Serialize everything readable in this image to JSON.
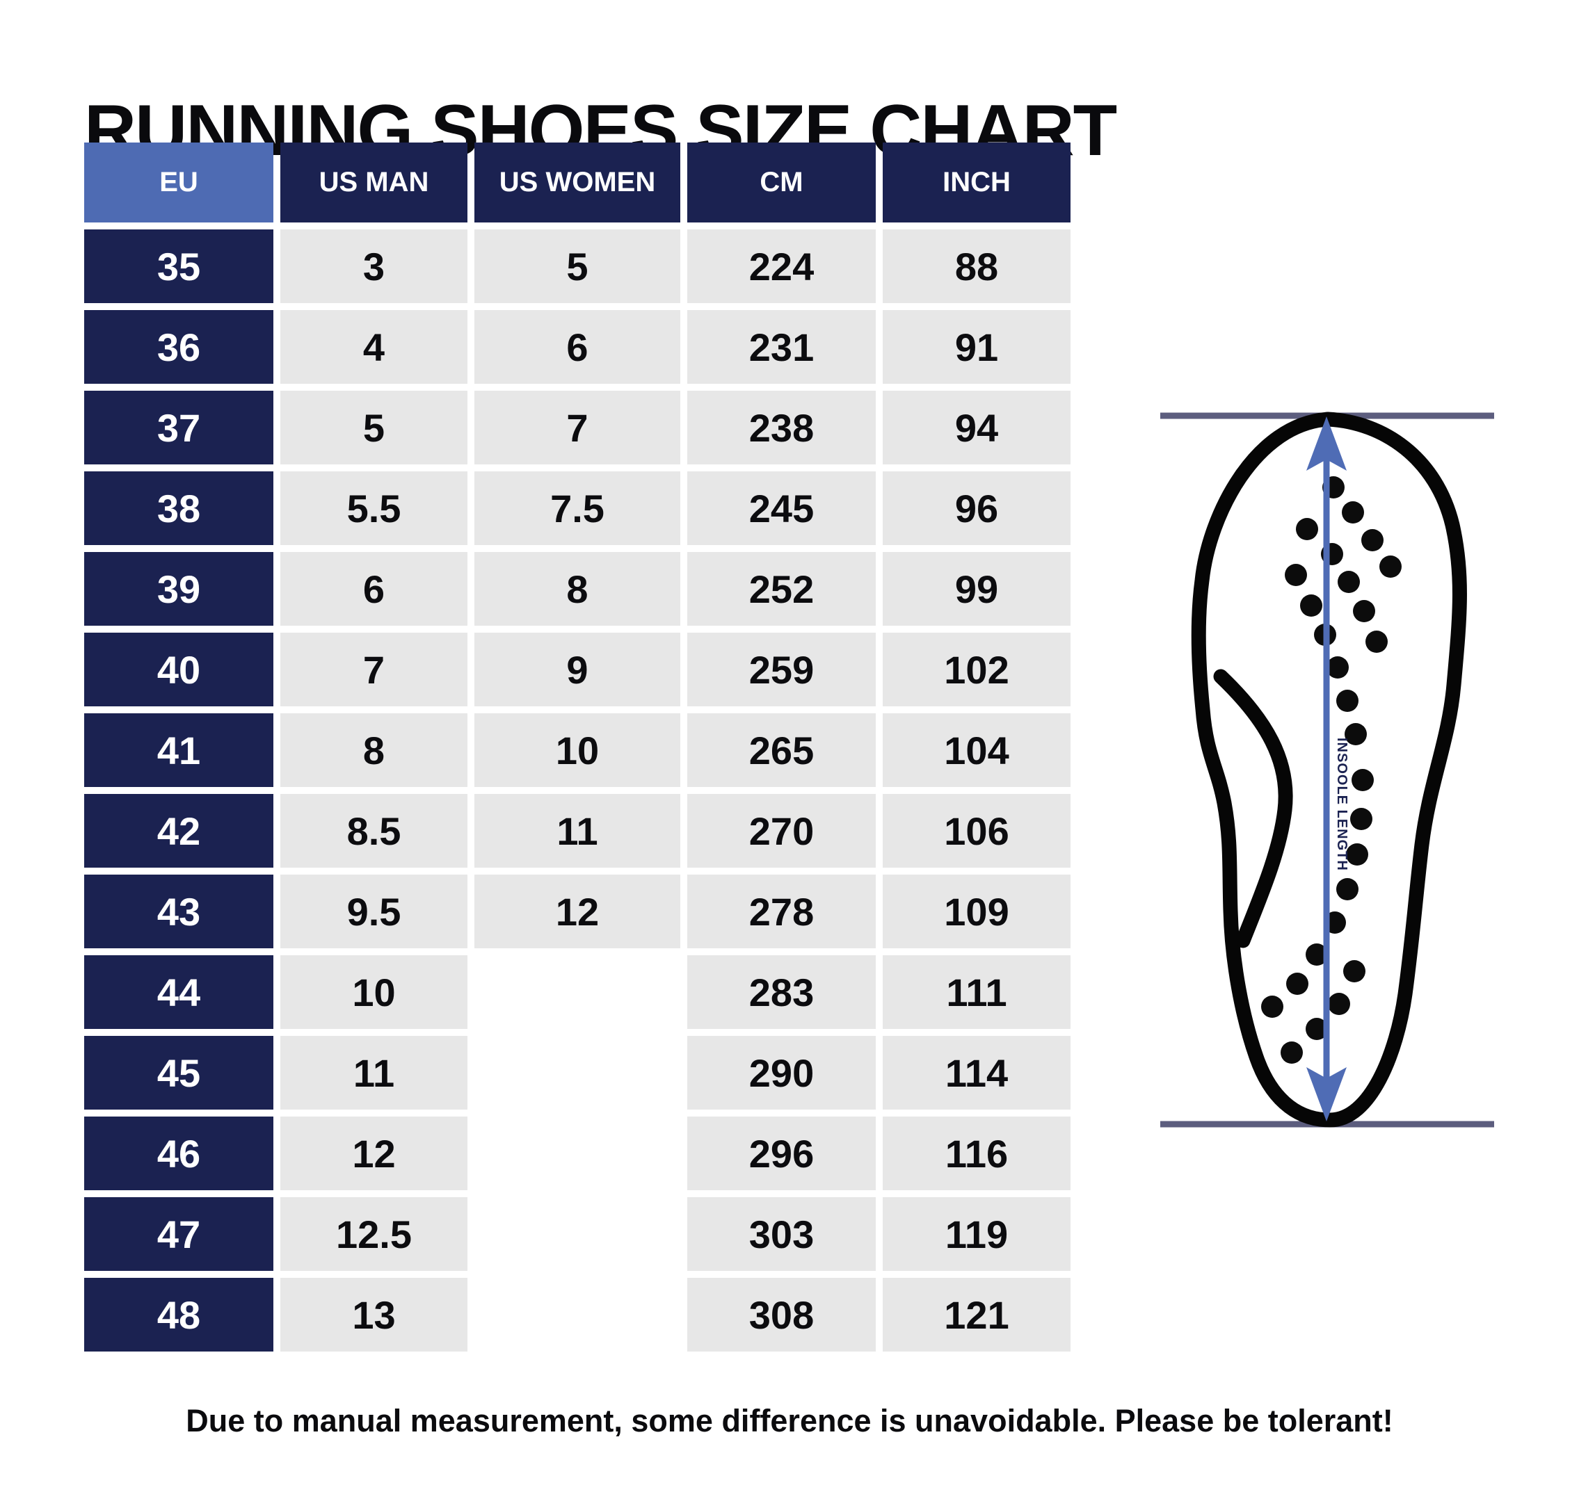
{
  "title": "RUNNING SHOES SIZE CHART",
  "footer": "Due to manual measurement, some difference is unavoidable. Please be tolerant!",
  "colors": {
    "navy": "#1b2251",
    "header_blue": "#4e6bb3",
    "cell_gray": "#e7e7e7",
    "arrow_blue": "#4f6cb5",
    "rule_line": "#5c5d7e",
    "text_black": "#0a0a0d"
  },
  "table": {
    "columns": [
      "EU",
      "US MAN",
      "US WOMEN",
      "CM",
      "INCH"
    ],
    "rows": [
      {
        "eu": "35",
        "us_man": "3",
        "us_women": "5",
        "cm": "224",
        "inch": "88"
      },
      {
        "eu": "36",
        "us_man": "4",
        "us_women": "6",
        "cm": "231",
        "inch": "91"
      },
      {
        "eu": "37",
        "us_man": "5",
        "us_women": "7",
        "cm": "238",
        "inch": "94"
      },
      {
        "eu": "38",
        "us_man": "5.5",
        "us_women": "7.5",
        "cm": "245",
        "inch": "96"
      },
      {
        "eu": "39",
        "us_man": "6",
        "us_women": "8",
        "cm": "252",
        "inch": "99"
      },
      {
        "eu": "40",
        "us_man": "7",
        "us_women": "9",
        "cm": "259",
        "inch": "102"
      },
      {
        "eu": "41",
        "us_man": "8",
        "us_women": "10",
        "cm": "265",
        "inch": "104"
      },
      {
        "eu": "42",
        "us_man": "8.5",
        "us_women": "11",
        "cm": "270",
        "inch": "106"
      },
      {
        "eu": "43",
        "us_man": "9.5",
        "us_women": "12",
        "cm": "278",
        "inch": "109"
      },
      {
        "eu": "44",
        "us_man": "10",
        "us_women": "",
        "cm": "283",
        "inch": "111"
      },
      {
        "eu": "45",
        "us_man": "11",
        "us_women": "",
        "cm": "290",
        "inch": "114"
      },
      {
        "eu": "46",
        "us_man": "12",
        "us_women": "",
        "cm": "296",
        "inch": "116"
      },
      {
        "eu": "47",
        "us_man": "12.5",
        "us_women": "",
        "cm": "303",
        "inch": "119"
      },
      {
        "eu": "48",
        "us_man": "13",
        "us_women": "",
        "cm": "308",
        "inch": "121"
      }
    ]
  },
  "diagram": {
    "label": "INSOOLE LENGTH"
  },
  "chart_data": {
    "type": "table",
    "title": "RUNNING SHOES SIZE CHART",
    "columns": [
      "EU",
      "US MAN",
      "US WOMEN",
      "CM",
      "INCH"
    ],
    "rows": [
      [
        "35",
        "3",
        "5",
        "224",
        "88"
      ],
      [
        "36",
        "4",
        "6",
        "231",
        "91"
      ],
      [
        "37",
        "5",
        "7",
        "238",
        "94"
      ],
      [
        "38",
        "5.5",
        "7.5",
        "245",
        "96"
      ],
      [
        "39",
        "6",
        "8",
        "252",
        "99"
      ],
      [
        "40",
        "7",
        "9",
        "259",
        "102"
      ],
      [
        "41",
        "8",
        "10",
        "265",
        "104"
      ],
      [
        "42",
        "8.5",
        "11",
        "270",
        "106"
      ],
      [
        "43",
        "9.5",
        "12",
        "278",
        "109"
      ],
      [
        "44",
        "10",
        "",
        "283",
        "111"
      ],
      [
        "45",
        "11",
        "",
        "290",
        "114"
      ],
      [
        "46",
        "12",
        "",
        "296",
        "116"
      ],
      [
        "47",
        "12.5",
        "",
        "303",
        "119"
      ],
      [
        "48",
        "13",
        "",
        "308",
        "121"
      ]
    ],
    "annotations": [
      "INSOOLE LENGTH",
      "Due to manual measurement, some difference is unavoidable. Please be tolerant!"
    ]
  }
}
